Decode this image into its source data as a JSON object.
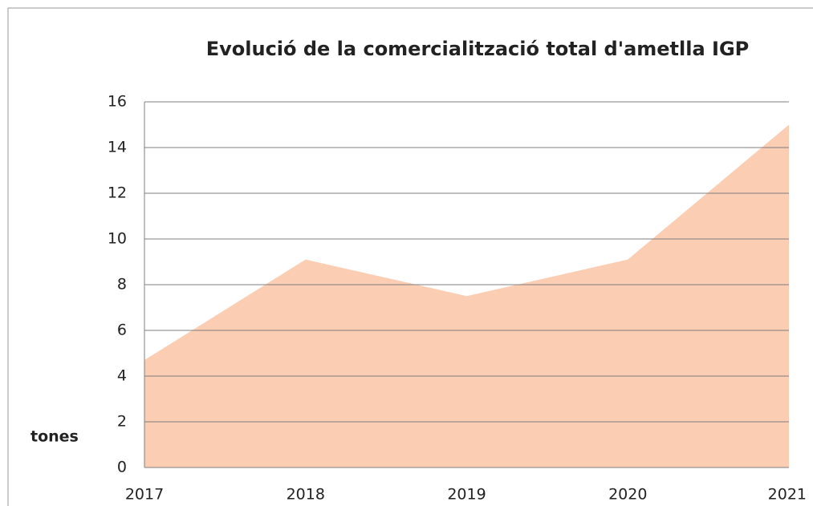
{
  "chart_data": {
    "type": "area",
    "title": "Evolució de la comercialització total d'ametlla IGP",
    "y_label": "tones",
    "categories": [
      "2017",
      "2018",
      "2019",
      "2020",
      "2021"
    ],
    "values": [
      4.7,
      9.1,
      7.5,
      9.1,
      15.0
    ],
    "color": "#fbcdb3",
    "ylim": [
      0,
      16
    ],
    "yticks": [
      0,
      2,
      4,
      6,
      8,
      10,
      12,
      14,
      16
    ],
    "grid": true
  }
}
